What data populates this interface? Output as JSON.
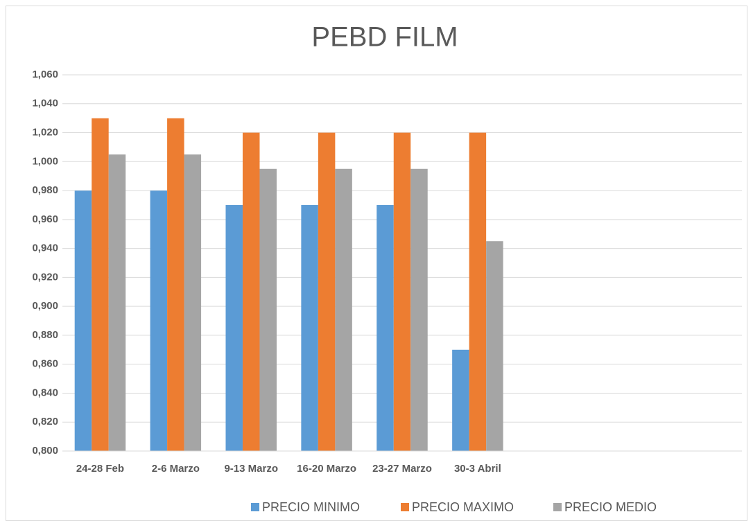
{
  "chart_data": {
    "type": "bar",
    "title": "PEBD FILM",
    "categories": [
      "24-28 Feb",
      "2-6 Marzo",
      "9-13 Marzo",
      "16-20 Marzo",
      "23-27 Marzo",
      "30-3 Abril",
      null,
      null,
      null
    ],
    "series": [
      {
        "name": "PRECIO MINIMO",
        "color": "#5b9bd5",
        "values": [
          0.98,
          0.98,
          0.97,
          0.97,
          0.97,
          0.87,
          null,
          null,
          null
        ]
      },
      {
        "name": "PRECIO MAXIMO",
        "color": "#ed7d31",
        "values": [
          1.03,
          1.03,
          1.02,
          1.02,
          1.02,
          1.02,
          null,
          null,
          null
        ]
      },
      {
        "name": "PRECIO MEDIO",
        "color": "#a5a5a5",
        "values": [
          1.005,
          1.005,
          0.995,
          0.995,
          0.995,
          0.945,
          null,
          null,
          null
        ]
      }
    ],
    "ylim": [
      0.8,
      1.06
    ],
    "yticks": [
      {
        "value": 0.8,
        "label": "0,800"
      },
      {
        "value": 0.82,
        "label": "0,820"
      },
      {
        "value": 0.84,
        "label": "0,840"
      },
      {
        "value": 0.86,
        "label": "0,860"
      },
      {
        "value": 0.88,
        "label": "0,880"
      },
      {
        "value": 0.9,
        "label": "0,900"
      },
      {
        "value": 0.92,
        "label": "0,920"
      },
      {
        "value": 0.94,
        "label": "0,940"
      },
      {
        "value": 0.96,
        "label": "0,960"
      },
      {
        "value": 0.98,
        "label": "0,980"
      },
      {
        "value": 1.0,
        "label": "1,000"
      },
      {
        "value": 1.02,
        "label": "1,020"
      },
      {
        "value": 1.04,
        "label": "1,040"
      },
      {
        "value": 1.06,
        "label": "1,060"
      }
    ],
    "grid": true,
    "legend": "bottom"
  }
}
